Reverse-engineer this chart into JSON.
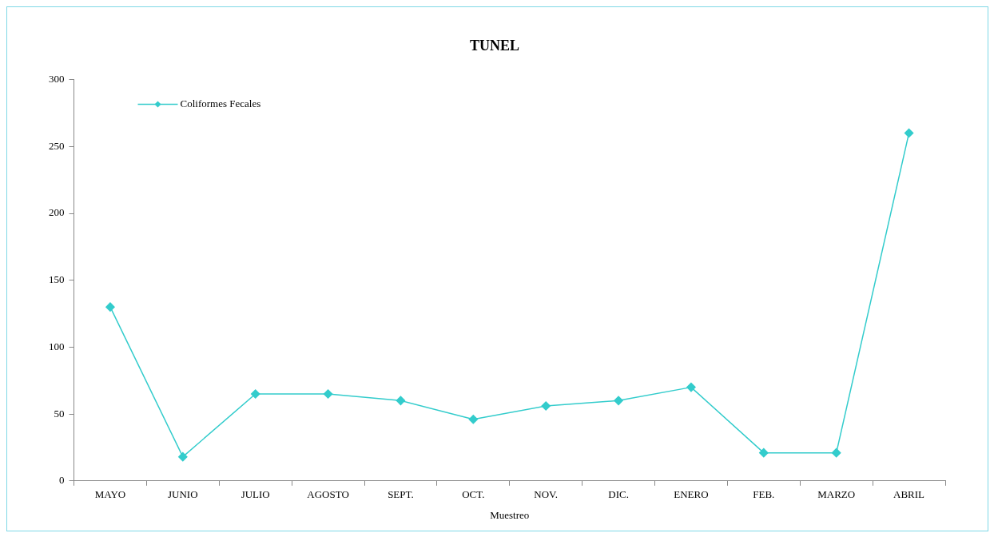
{
  "chart_data": {
    "type": "line",
    "title": "TUNEL",
    "xlabel": "Muestreo",
    "categories": [
      "MAYO",
      "JUNIO",
      "JULIO",
      "AGOSTO",
      "SEPT.",
      "OCT.",
      "NOV.",
      "DIC.",
      "ENERO",
      "FEB.",
      "MARZO",
      "ABRIL"
    ],
    "series": [
      {
        "name": "Coliformes Fecales",
        "color": "#33cccc",
        "values": [
          130,
          18,
          65,
          65,
          60,
          46,
          56,
          60,
          70,
          21,
          21,
          260
        ]
      }
    ],
    "ylim": [
      0,
      300
    ],
    "yticks": [
      0,
      50,
      100,
      150,
      200,
      250,
      300
    ],
    "grid": false,
    "legend": "top left",
    "marker": "diamond",
    "line_style": "solid"
  }
}
